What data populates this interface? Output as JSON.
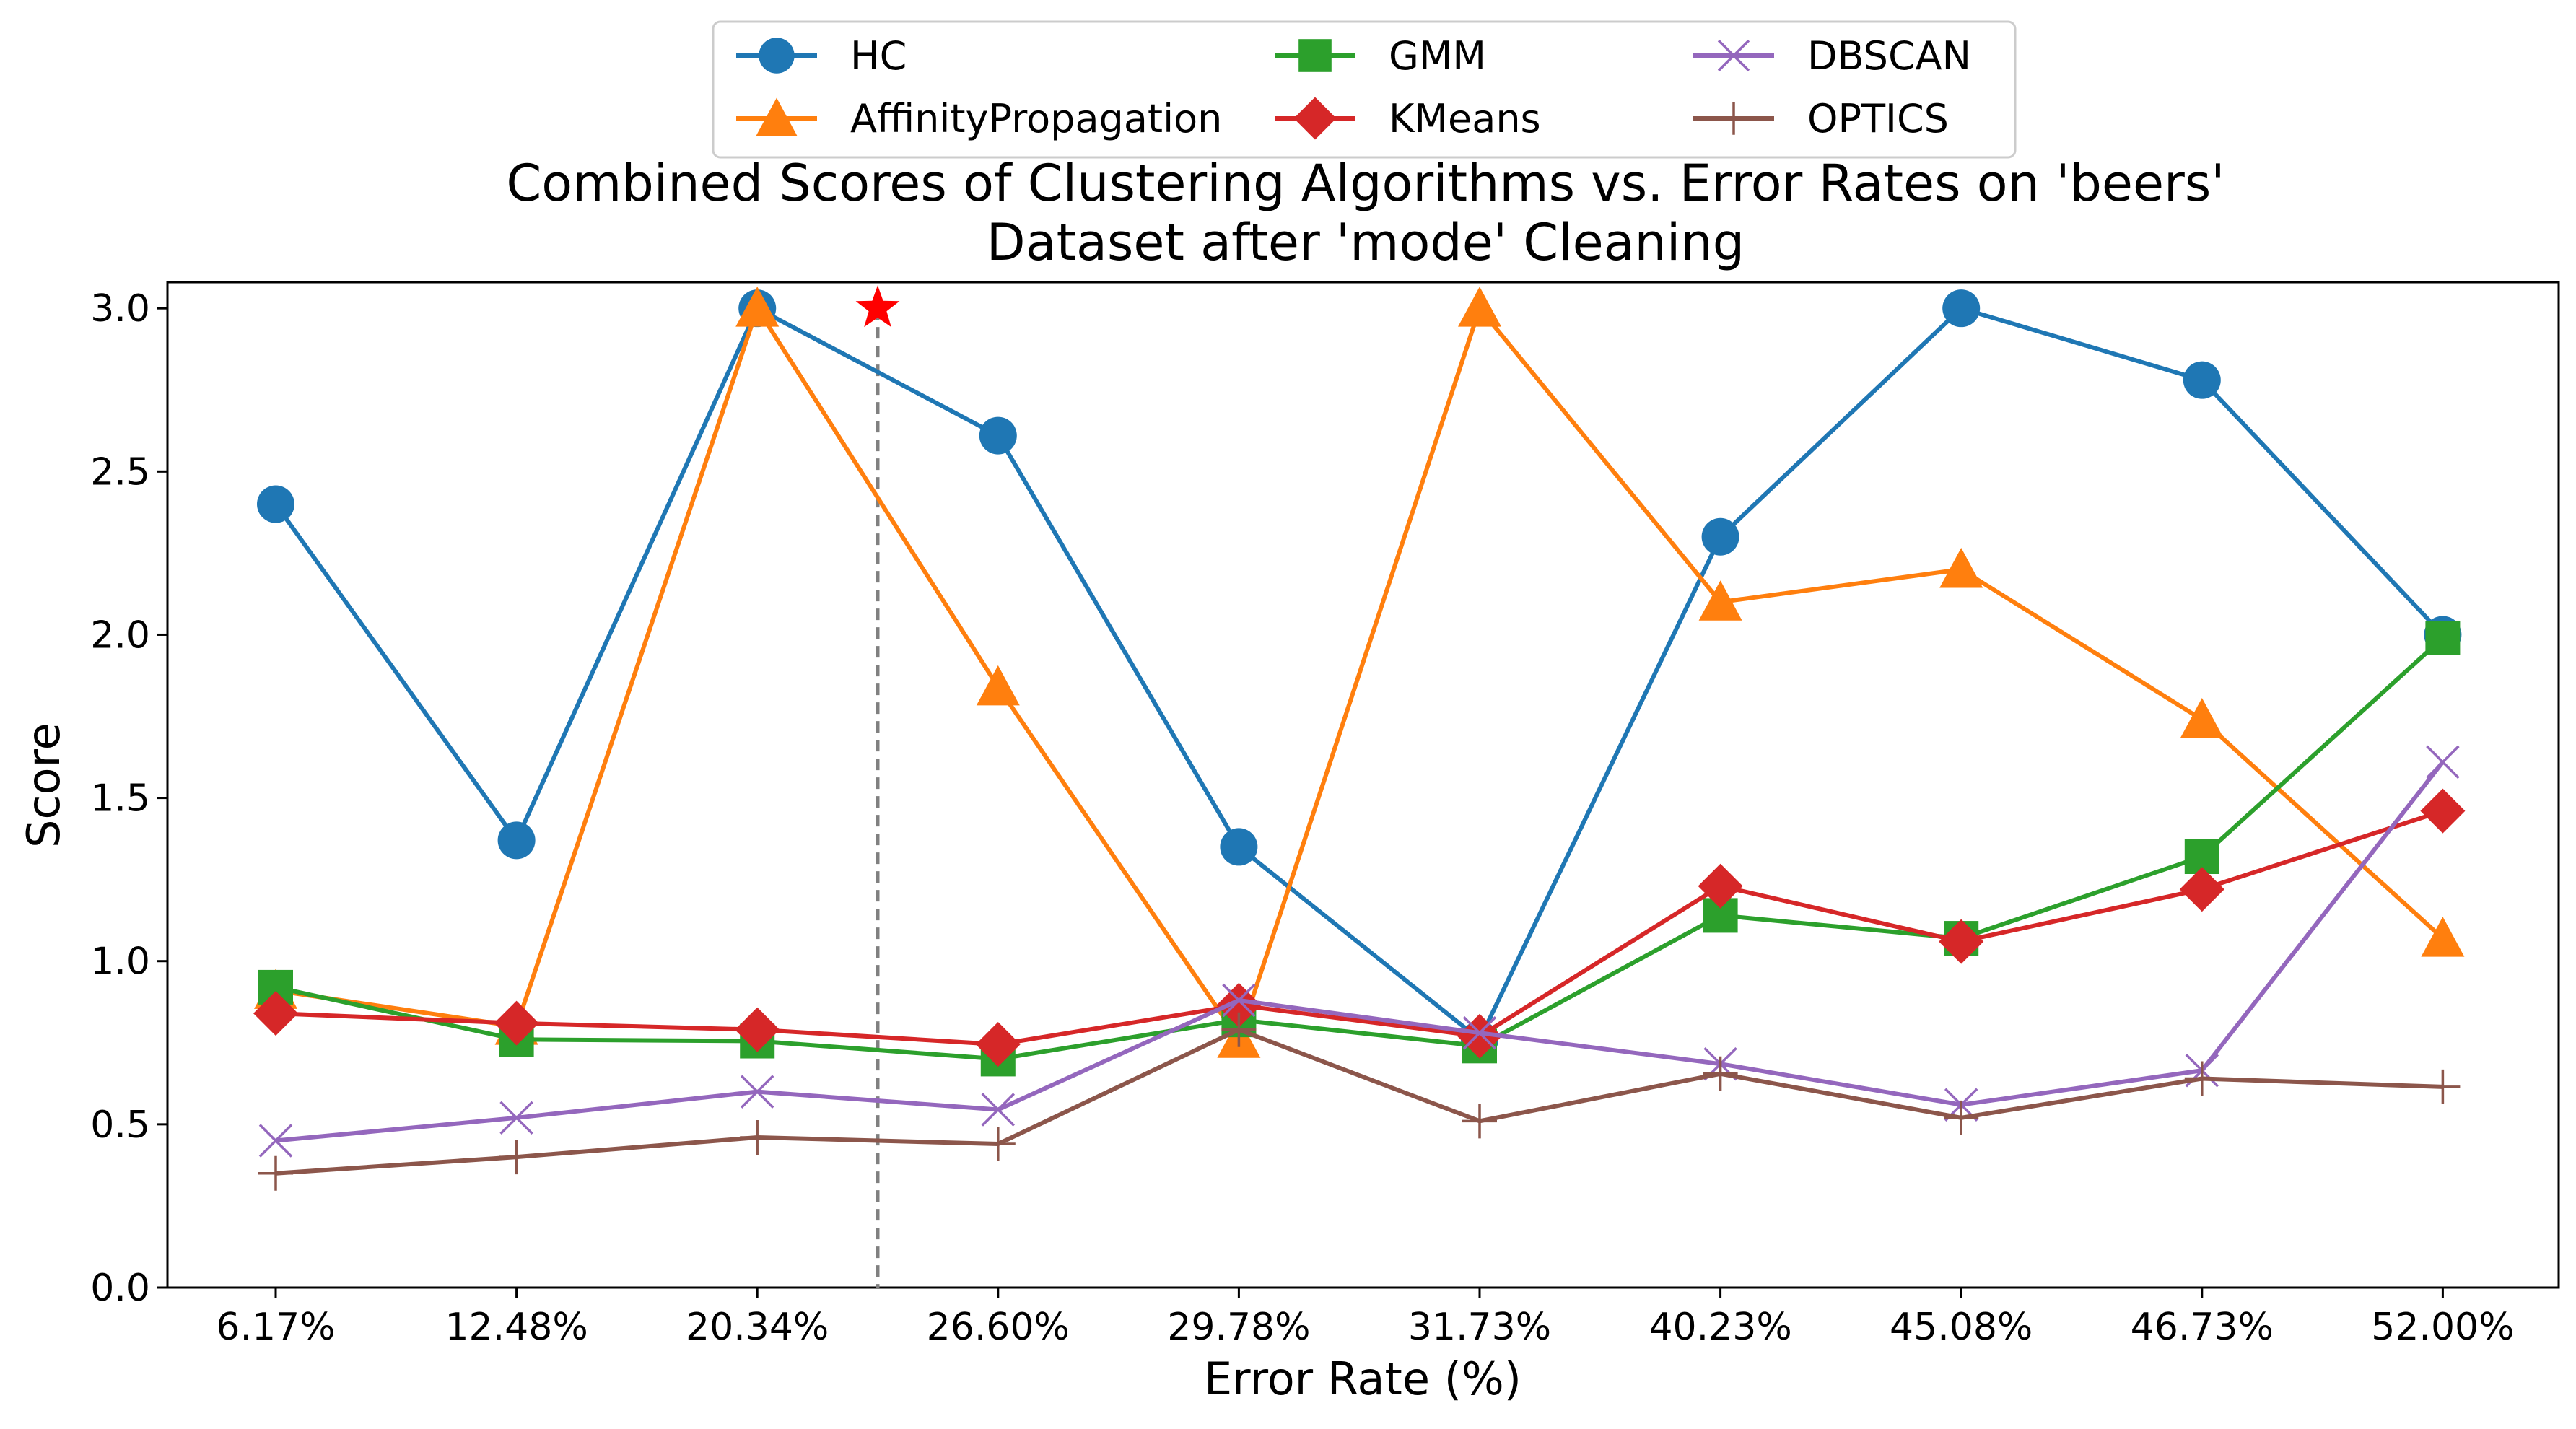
{
  "chart_data": {
    "type": "line",
    "title_lines": [
      "Combined Scores of Clustering Algorithms vs. Error Rates on 'beers'",
      "Dataset after 'mode' Cleaning"
    ],
    "xlabel": "Error Rate (%)",
    "ylabel": "Score",
    "categories": [
      "6.17%",
      "12.48%",
      "20.34%",
      "26.60%",
      "29.78%",
      "31.73%",
      "40.23%",
      "45.08%",
      "46.73%",
      "52.00%"
    ],
    "ylim": [
      0.0,
      3.08
    ],
    "yticks": [
      "0.0",
      "0.5",
      "1.0",
      "1.5",
      "2.0",
      "2.5",
      "3.0"
    ],
    "ytick_values": [
      0.0,
      0.5,
      1.0,
      1.5,
      2.0,
      2.5,
      3.0
    ],
    "grid": false,
    "legend_position": "top-center",
    "marker_line": {
      "x_index": 2.5,
      "style": "dashed",
      "color": "#808080"
    },
    "star_marker": {
      "x_index": 2.5,
      "y": 3.0,
      "color": "#ff0000"
    },
    "series": [
      {
        "name": "HC",
        "color": "#1f77b4",
        "marker": "circle",
        "values": [
          2.4,
          1.37,
          3.0,
          2.61,
          1.35,
          0.76,
          2.3,
          3.0,
          2.78,
          2.0
        ]
      },
      {
        "name": "AffinityPropagation",
        "color": "#ff7f0e",
        "marker": "triangle",
        "values": [
          0.91,
          0.8,
          3.0,
          1.84,
          0.76,
          3.0,
          2.1,
          2.2,
          1.74,
          1.07
        ]
      },
      {
        "name": "GMM",
        "color": "#2ca02c",
        "marker": "square",
        "values": [
          0.92,
          0.76,
          0.755,
          0.7,
          0.82,
          0.74,
          1.14,
          1.07,
          1.32,
          1.99
        ]
      },
      {
        "name": "KMeans",
        "color": "#d62728",
        "marker": "diamond",
        "values": [
          0.84,
          0.81,
          0.79,
          0.745,
          0.865,
          0.77,
          1.23,
          1.06,
          1.22,
          1.46
        ]
      },
      {
        "name": "DBSCAN",
        "color": "#9467bd",
        "marker": "x",
        "values": [
          0.45,
          0.52,
          0.6,
          0.545,
          0.88,
          0.78,
          0.685,
          0.56,
          0.665,
          1.61
        ]
      },
      {
        "name": "OPTICS",
        "color": "#8c564b",
        "marker": "plus",
        "values": [
          0.35,
          0.4,
          0.46,
          0.44,
          0.79,
          0.51,
          0.655,
          0.52,
          0.64,
          0.615
        ]
      }
    ]
  }
}
